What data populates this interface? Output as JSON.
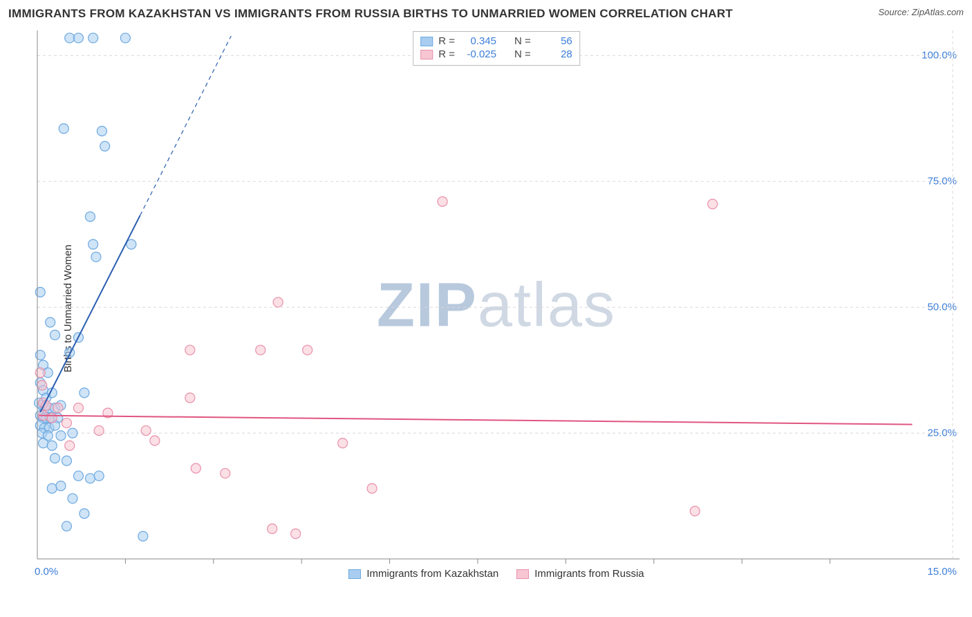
{
  "title": "IMMIGRANTS FROM KAZAKHSTAN VS IMMIGRANTS FROM RUSSIA BIRTHS TO UNMARRIED WOMEN CORRELATION CHART",
  "source": "Source: ZipAtlas.com",
  "yaxis_label": "Births to Unmarried Women",
  "watermark_zip": "ZIP",
  "watermark_rest": "atlas",
  "chart": {
    "type": "scatter",
    "xlim": [
      0,
      15
    ],
    "ylim": [
      0,
      105
    ],
    "x_tick_major": [
      0,
      15
    ],
    "x_tick_minor": [
      1.5,
      3.0,
      4.5,
      6.0,
      7.5,
      9.0,
      10.5,
      12.0,
      13.5
    ],
    "x_tick_labels": {
      "0": "0.0%",
      "15": "15.0%"
    },
    "y_grid": [
      25,
      50,
      75,
      100
    ],
    "y_tick_labels": {
      "25": "25.0%",
      "50": "50.0%",
      "75": "75.0%",
      "100": "100.0%"
    },
    "grid_color": "#d8d8d8",
    "axis_color": "#888888",
    "background_color": "#ffffff",
    "tick_label_color": "#3b7dd8",
    "point_radius": 7,
    "point_stroke_width": 1.2,
    "series": [
      {
        "name": "Immigrants from Kazakhstan",
        "legend_label": "Immigrants from Kazakhstan",
        "fill_color": "#a8cdf0",
        "stroke_color": "#6da8e0",
        "fill_opacity": 0.55,
        "regression": {
          "color": "#2a5db0",
          "width": 2,
          "solid_x_range": [
            0.05,
            1.75
          ],
          "dash_extend_to_x": 3.3,
          "slope": 23.0,
          "intercept": 28.0
        },
        "stats": {
          "R": "0.345",
          "N": "56"
        },
        "points": [
          [
            0.55,
            103.5
          ],
          [
            0.7,
            103.5
          ],
          [
            0.95,
            103.5
          ],
          [
            1.5,
            103.5
          ],
          [
            0.45,
            85.5
          ],
          [
            1.1,
            85.0
          ],
          [
            1.15,
            82.0
          ],
          [
            0.9,
            68.0
          ],
          [
            0.95,
            62.5
          ],
          [
            1.0,
            60.0
          ],
          [
            1.6,
            62.5
          ],
          [
            0.05,
            53.0
          ],
          [
            0.22,
            47.0
          ],
          [
            0.3,
            44.5
          ],
          [
            0.05,
            40.5
          ],
          [
            0.1,
            38.5
          ],
          [
            0.18,
            37.0
          ],
          [
            0.55,
            41.0
          ],
          [
            0.7,
            44.0
          ],
          [
            0.05,
            35.0
          ],
          [
            0.1,
            33.5
          ],
          [
            0.15,
            32.0
          ],
          [
            0.25,
            33.0
          ],
          [
            0.8,
            33.0
          ],
          [
            0.03,
            31.0
          ],
          [
            0.08,
            30.5
          ],
          [
            0.13,
            30.0
          ],
          [
            0.2,
            30.0
          ],
          [
            0.3,
            30.0
          ],
          [
            0.4,
            30.5
          ],
          [
            0.05,
            28.5
          ],
          [
            0.1,
            28.0
          ],
          [
            0.15,
            28.0
          ],
          [
            0.22,
            28.0
          ],
          [
            0.35,
            28.0
          ],
          [
            0.05,
            26.5
          ],
          [
            0.12,
            26.0
          ],
          [
            0.2,
            26.0
          ],
          [
            0.3,
            26.5
          ],
          [
            0.08,
            25.0
          ],
          [
            0.18,
            24.5
          ],
          [
            0.4,
            24.5
          ],
          [
            0.1,
            23.0
          ],
          [
            0.25,
            22.5
          ],
          [
            0.6,
            25.0
          ],
          [
            0.3,
            20.0
          ],
          [
            0.5,
            19.5
          ],
          [
            0.7,
            16.5
          ],
          [
            0.9,
            16.0
          ],
          [
            1.05,
            16.5
          ],
          [
            0.6,
            12.0
          ],
          [
            0.8,
            9.0
          ],
          [
            0.5,
            6.5
          ],
          [
            1.8,
            4.5
          ],
          [
            0.25,
            14.0
          ],
          [
            0.4,
            14.5
          ]
        ]
      },
      {
        "name": "Immigrants from Russia",
        "legend_label": "Immigrants from Russia",
        "fill_color": "#f7c6d2",
        "stroke_color": "#e890aa",
        "fill_opacity": 0.55,
        "regression": {
          "color": "#e05580",
          "width": 2,
          "solid_x_range": [
            0.03,
            14.9
          ],
          "dash_extend_to_x": 14.9,
          "slope": -0.12,
          "intercept": 28.5
        },
        "stats": {
          "R": "-0.025",
          "N": "28"
        },
        "points": [
          [
            6.9,
            71.0
          ],
          [
            11.5,
            70.5
          ],
          [
            4.1,
            51.0
          ],
          [
            2.6,
            41.5
          ],
          [
            3.8,
            41.5
          ],
          [
            4.6,
            41.5
          ],
          [
            0.05,
            37.0
          ],
          [
            0.08,
            34.5
          ],
          [
            2.6,
            32.0
          ],
          [
            0.1,
            31.0
          ],
          [
            0.15,
            30.5
          ],
          [
            0.35,
            30.0
          ],
          [
            0.7,
            30.0
          ],
          [
            1.2,
            29.0
          ],
          [
            0.1,
            28.5
          ],
          [
            0.25,
            28.0
          ],
          [
            0.5,
            27.0
          ],
          [
            1.05,
            25.5
          ],
          [
            1.85,
            25.5
          ],
          [
            2.0,
            23.5
          ],
          [
            5.2,
            23.0
          ],
          [
            0.55,
            22.5
          ],
          [
            2.7,
            18.0
          ],
          [
            3.2,
            17.0
          ],
          [
            5.7,
            14.0
          ],
          [
            11.2,
            9.5
          ],
          [
            4.0,
            6.0
          ],
          [
            4.4,
            5.0
          ]
        ]
      }
    ]
  },
  "stats_labels": {
    "R": "R =",
    "N": "N ="
  }
}
